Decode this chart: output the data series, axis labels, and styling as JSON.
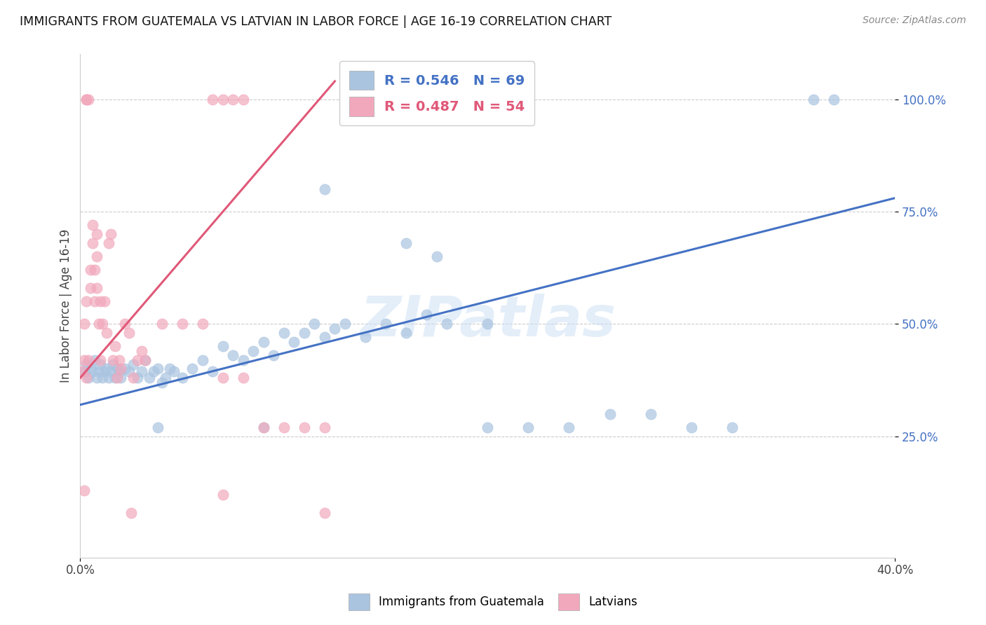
{
  "title": "IMMIGRANTS FROM GUATEMALA VS LATVIAN IN LABOR FORCE | AGE 16-19 CORRELATION CHART",
  "source": "Source: ZipAtlas.com",
  "ylabel": "In Labor Force | Age 16-19",
  "xlim": [
    0.0,
    0.4
  ],
  "ylim": [
    -0.02,
    1.1
  ],
  "yticks": [
    0.25,
    0.5,
    0.75,
    1.0
  ],
  "ytick_labels": [
    "25.0%",
    "50.0%",
    "75.0%",
    "100.0%"
  ],
  "xtick_positions": [
    0.0,
    0.4
  ],
  "xtick_labels": [
    "0.0%",
    "40.0%"
  ],
  "blue_R": 0.546,
  "blue_N": 69,
  "pink_R": 0.487,
  "pink_N": 54,
  "blue_color": "#aac4e0",
  "pink_color": "#f2a8bc",
  "blue_line_color": "#4472c4",
  "pink_line_color": "#e05878",
  "legend_blue_label": "Immigrants from Guatemala",
  "legend_pink_label": "Latvians",
  "watermark": "ZIPatlas",
  "blue_line_x": [
    0.0,
    0.4
  ],
  "blue_line_y": [
    0.32,
    0.78
  ],
  "pink_line_x": [
    0.0,
    0.125
  ],
  "pink_line_y": [
    0.38,
    1.04
  ],
  "blue_points": [
    [
      0.002,
      0.395
    ],
    [
      0.003,
      0.41
    ],
    [
      0.004,
      0.38
    ],
    [
      0.005,
      0.4
    ],
    [
      0.006,
      0.395
    ],
    [
      0.007,
      0.42
    ],
    [
      0.008,
      0.38
    ],
    [
      0.009,
      0.395
    ],
    [
      0.01,
      0.41
    ],
    [
      0.011,
      0.38
    ],
    [
      0.012,
      0.395
    ],
    [
      0.013,
      0.4
    ],
    [
      0.014,
      0.38
    ],
    [
      0.015,
      0.395
    ],
    [
      0.016,
      0.41
    ],
    [
      0.017,
      0.38
    ],
    [
      0.018,
      0.4
    ],
    [
      0.019,
      0.395
    ],
    [
      0.02,
      0.38
    ],
    [
      0.022,
      0.4
    ],
    [
      0.024,
      0.395
    ],
    [
      0.026,
      0.41
    ],
    [
      0.028,
      0.38
    ],
    [
      0.03,
      0.395
    ],
    [
      0.032,
      0.42
    ],
    [
      0.034,
      0.38
    ],
    [
      0.036,
      0.395
    ],
    [
      0.038,
      0.4
    ],
    [
      0.04,
      0.37
    ],
    [
      0.042,
      0.38
    ],
    [
      0.044,
      0.4
    ],
    [
      0.046,
      0.395
    ],
    [
      0.05,
      0.38
    ],
    [
      0.055,
      0.4
    ],
    [
      0.06,
      0.42
    ],
    [
      0.065,
      0.395
    ],
    [
      0.07,
      0.45
    ],
    [
      0.075,
      0.43
    ],
    [
      0.08,
      0.42
    ],
    [
      0.085,
      0.44
    ],
    [
      0.09,
      0.46
    ],
    [
      0.095,
      0.43
    ],
    [
      0.1,
      0.48
    ],
    [
      0.105,
      0.46
    ],
    [
      0.11,
      0.48
    ],
    [
      0.115,
      0.5
    ],
    [
      0.12,
      0.47
    ],
    [
      0.125,
      0.49
    ],
    [
      0.13,
      0.5
    ],
    [
      0.14,
      0.47
    ],
    [
      0.15,
      0.5
    ],
    [
      0.16,
      0.48
    ],
    [
      0.17,
      0.52
    ],
    [
      0.18,
      0.5
    ],
    [
      0.2,
      0.5
    ],
    [
      0.12,
      0.8
    ],
    [
      0.16,
      0.68
    ],
    [
      0.175,
      0.65
    ],
    [
      0.2,
      0.27
    ],
    [
      0.22,
      0.27
    ],
    [
      0.24,
      0.27
    ],
    [
      0.26,
      0.3
    ],
    [
      0.28,
      0.3
    ],
    [
      0.3,
      0.27
    ],
    [
      0.32,
      0.27
    ],
    [
      0.36,
      1.0
    ],
    [
      0.37,
      1.0
    ],
    [
      0.038,
      0.27
    ],
    [
      0.09,
      0.27
    ]
  ],
  "pink_points": [
    [
      0.001,
      0.395
    ],
    [
      0.002,
      0.42
    ],
    [
      0.002,
      0.5
    ],
    [
      0.003,
      0.55
    ],
    [
      0.003,
      0.38
    ],
    [
      0.003,
      1.0
    ],
    [
      0.003,
      1.0
    ],
    [
      0.004,
      1.0
    ],
    [
      0.004,
      0.42
    ],
    [
      0.005,
      0.62
    ],
    [
      0.005,
      0.58
    ],
    [
      0.006,
      0.68
    ],
    [
      0.006,
      0.72
    ],
    [
      0.007,
      0.62
    ],
    [
      0.007,
      0.55
    ],
    [
      0.008,
      0.7
    ],
    [
      0.008,
      0.65
    ],
    [
      0.008,
      0.58
    ],
    [
      0.009,
      0.5
    ],
    [
      0.01,
      0.55
    ],
    [
      0.01,
      0.42
    ],
    [
      0.011,
      0.5
    ],
    [
      0.012,
      0.55
    ],
    [
      0.013,
      0.48
    ],
    [
      0.014,
      0.68
    ],
    [
      0.015,
      0.7
    ],
    [
      0.016,
      0.42
    ],
    [
      0.017,
      0.45
    ],
    [
      0.018,
      0.38
    ],
    [
      0.019,
      0.42
    ],
    [
      0.02,
      0.4
    ],
    [
      0.022,
      0.5
    ],
    [
      0.024,
      0.48
    ],
    [
      0.026,
      0.38
    ],
    [
      0.028,
      0.42
    ],
    [
      0.03,
      0.44
    ],
    [
      0.032,
      0.42
    ],
    [
      0.04,
      0.5
    ],
    [
      0.05,
      0.5
    ],
    [
      0.06,
      0.5
    ],
    [
      0.07,
      0.38
    ],
    [
      0.08,
      0.38
    ],
    [
      0.09,
      0.27
    ],
    [
      0.1,
      0.27
    ],
    [
      0.11,
      0.27
    ],
    [
      0.12,
      0.27
    ],
    [
      0.002,
      0.13
    ],
    [
      0.07,
      0.12
    ],
    [
      0.065,
      1.0
    ],
    [
      0.07,
      1.0
    ],
    [
      0.075,
      1.0
    ],
    [
      0.08,
      1.0
    ],
    [
      0.025,
      0.08
    ],
    [
      0.12,
      0.08
    ]
  ]
}
